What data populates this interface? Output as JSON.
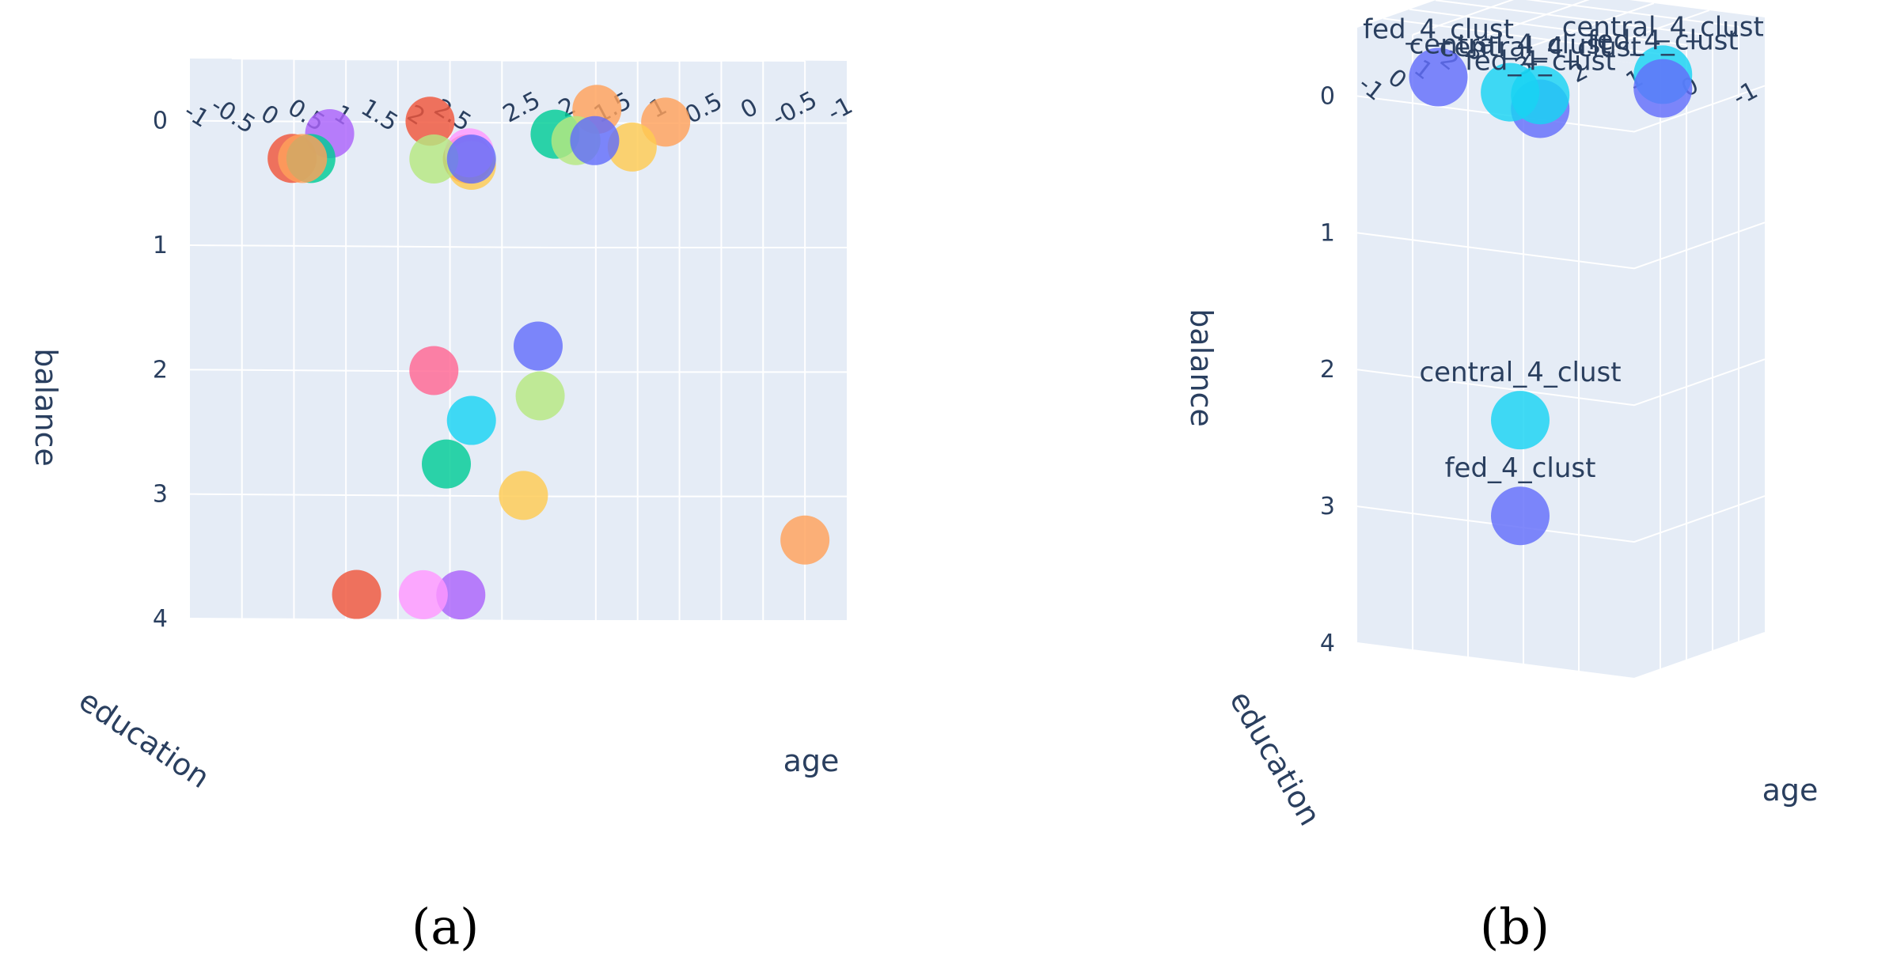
{
  "figure": {
    "label_a": "(a)",
    "label_b": "(b)"
  },
  "chart_data": [
    {
      "type": "scatter3d",
      "panel": "a",
      "axes": {
        "x": {
          "title": "age",
          "ticks": [
            "-1",
            "-0.5",
            "0",
            "0.5",
            "1",
            "1.5",
            "2",
            "2.5"
          ]
        },
        "y": {
          "title": "education",
          "ticks": [
            "-1",
            "-0.5",
            "0",
            "0.5",
            "1",
            "1.5",
            "2",
            "2.5"
          ]
        },
        "z": {
          "title": "balance",
          "ticks": [
            "0",
            "1",
            "2",
            "3",
            "4"
          ],
          "range": [
            -0.5,
            4
          ]
        }
      },
      "points": [
        {
          "color": "#FECB52",
          "age": 0.5,
          "education": 0.5,
          "balance": 3.0
        },
        {
          "color": "#00CC96",
          "age": 0.2,
          "education": 1.0,
          "balance": 2.75
        },
        {
          "color": "#19D3F3",
          "age": 0.5,
          "education": 1.0,
          "balance": 2.4
        },
        {
          "color": "#B6E880",
          "age": 0.7,
          "education": 0.5,
          "balance": 2.2
        },
        {
          "color": "#FF6692",
          "age": 0.3,
          "education": 1.2,
          "balance": 2.0
        },
        {
          "color": "#636EFA",
          "age": 0.8,
          "education": 0.6,
          "balance": 1.8
        },
        {
          "color": "#AB63FA",
          "age": 0.0,
          "education": 0.7,
          "balance": 3.8
        },
        {
          "color": "#FF97FF",
          "age": -0.2,
          "education": 0.9,
          "balance": 3.8
        },
        {
          "color": "#EF553B",
          "age": -0.5,
          "education": 1.3,
          "balance": 3.8
        },
        {
          "color": "#FFA15A",
          "age": 2.0,
          "education": -1.0,
          "balance": 3.35
        },
        {
          "color": "#FFA15A",
          "age": 2.2,
          "education": 0.5,
          "balance": 0.0
        },
        {
          "color": "#FFA15A",
          "age": 2.0,
          "education": 1.0,
          "balance": -0.1
        },
        {
          "color": "#FECB52",
          "age": 1.8,
          "education": 0.5,
          "balance": 0.2
        },
        {
          "color": "#00CC96",
          "age": 1.5,
          "education": 1.0,
          "balance": 0.1
        },
        {
          "color": "#B6E880",
          "age": 1.5,
          "education": 0.8,
          "balance": 0.15
        },
        {
          "color": "#636EFA",
          "age": 1.6,
          "education": 0.7,
          "balance": 0.15
        },
        {
          "color": "#EF553B",
          "age": 0.7,
          "education": 1.2,
          "balance": 0.3
        },
        {
          "color": "#EF553B",
          "age": 1.0,
          "education": 1.8,
          "balance": 0.0
        },
        {
          "color": "#FECB52",
          "age": 0.5,
          "education": 1.0,
          "balance": 0.35
        },
        {
          "color": "#FF97FF",
          "age": 0.6,
          "education": 1.1,
          "balance": 0.25
        },
        {
          "color": "#B6E880",
          "age": 0.3,
          "education": 1.2,
          "balance": 0.3
        },
        {
          "color": "#636EFA",
          "age": 0.5,
          "education": 1.0,
          "balance": 0.3
        },
        {
          "color": "#AB63FA",
          "age": -0.2,
          "education": 1.8,
          "balance": 0.1
        },
        {
          "color": "#EF553B",
          "age": -0.4,
          "education": 2.0,
          "balance": 0.3
        },
        {
          "color": "#00CC96",
          "age": -0.3,
          "education": 1.9,
          "balance": 0.3
        },
        {
          "color": "#FFA15A",
          "age": -0.4,
          "education": 1.9,
          "balance": 0.3
        }
      ]
    },
    {
      "type": "scatter3d",
      "panel": "b",
      "axes": {
        "x": {
          "title": "age",
          "ticks": [
            "-1",
            "0",
            "1",
            "2",
            "3"
          ]
        },
        "y": {
          "title": "education",
          "ticks": [
            "-1",
            "0",
            "1",
            "2",
            "3"
          ]
        },
        "z": {
          "title": "balance",
          "ticks": [
            "0",
            "1",
            "2",
            "3",
            "4"
          ],
          "range": [
            -0.5,
            4
          ]
        }
      },
      "points": [
        {
          "text": "fed_4_clust",
          "color": "#636EFA",
          "age": 0.6,
          "education": 1.4,
          "balance": 3.1
        },
        {
          "text": "central_4_clust",
          "color": "#19D3F3",
          "age": 0.6,
          "education": 1.4,
          "balance": 2.4
        },
        {
          "text": "central_4_clust",
          "color": "#19D3F3",
          "age": 2.0,
          "education": 0.0,
          "balance": -0.1
        },
        {
          "text": "fed_4_clust",
          "color": "#636EFA",
          "age": 2.0,
          "education": 0.0,
          "balance": 0.0
        },
        {
          "text": "fed_4_clust",
          "color": "#636EFA",
          "age": 1.0,
          "education": 1.3,
          "balance": 0.15
        },
        {
          "text": "central_4_clust",
          "color": "#19D3F3",
          "age": 1.0,
          "education": 1.3,
          "balance": 0.05
        },
        {
          "text": "central_4_clust",
          "color": "#19D3F3",
          "age": 0.5,
          "education": 1.5,
          "balance": 0.0
        },
        {
          "text": "fed_4_clust",
          "color": "#636EFA",
          "age": 0.0,
          "education": 2.3,
          "balance": -0.1
        }
      ]
    }
  ]
}
